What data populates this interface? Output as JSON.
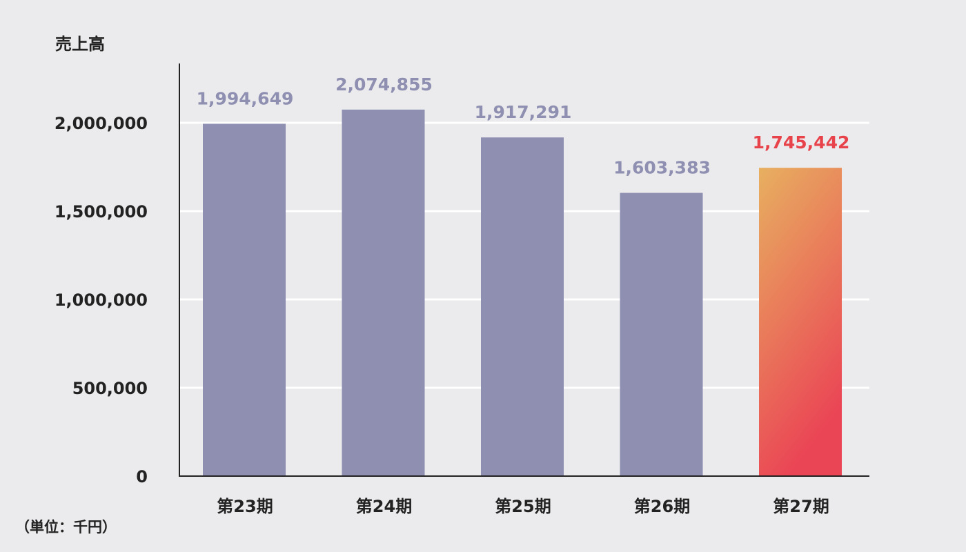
{
  "chart_data": {
    "type": "bar",
    "ylabel": "売上高",
    "unit_note": "（単位：千円）",
    "categories": [
      "第23期",
      "第24期",
      "第25期",
      "第26期",
      "第27期"
    ],
    "values": [
      1994649,
      2074855,
      1917291,
      1603383,
      1745442
    ],
    "data_labels": [
      "1,994,649",
      "2,074,855",
      "1,917,291",
      "1,603,383",
      "1,745,442"
    ],
    "y_ticks": [
      {
        "value": 0,
        "label": "0"
      },
      {
        "value": 500000,
        "label": "500,000"
      },
      {
        "value": 1000000,
        "label": "1,000,000"
      },
      {
        "value": 1500000,
        "label": "1,500,000"
      },
      {
        "value": 2000000,
        "label": "2,000,000"
      }
    ],
    "ylim": [
      0,
      2300000
    ],
    "grid": true,
    "highlight_index": 4,
    "colors": {
      "bar": "#8e8fb1",
      "label": "#8e8fb1",
      "highlight_label": "#e8434b",
      "highlight_gradient_top": "#e8b060",
      "highlight_gradient_bottom": "#ea4555",
      "grid": "#ffffff",
      "axis": "#222222",
      "background": "#ebebed"
    }
  }
}
